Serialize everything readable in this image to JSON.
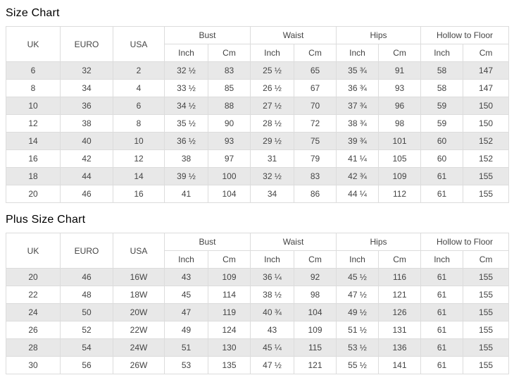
{
  "colors": {
    "background": "#ffffff",
    "border": "#dcdcdc",
    "row_stripe": "#e8e8e8",
    "cell_text": "#444444",
    "title_text": "#000000"
  },
  "tables": [
    {
      "title": "Size Chart",
      "size_columns": [
        "UK",
        "EURO",
        "USA"
      ],
      "measure_groups": [
        {
          "label": "Bust",
          "sub": [
            "Inch",
            "Cm"
          ]
        },
        {
          "label": "Waist",
          "sub": [
            "Inch",
            "Cm"
          ]
        },
        {
          "label": "Hips",
          "sub": [
            "Inch",
            "Cm"
          ]
        },
        {
          "label": "Hollow to Floor",
          "sub": [
            "Inch",
            "Cm"
          ]
        }
      ],
      "rows": [
        [
          "6",
          "32",
          "2",
          "32 ½",
          "83",
          "25 ½",
          "65",
          "35 ¾",
          "91",
          "58",
          "147"
        ],
        [
          "8",
          "34",
          "4",
          "33 ½",
          "85",
          "26 ½",
          "67",
          "36 ¾",
          "93",
          "58",
          "147"
        ],
        [
          "10",
          "36",
          "6",
          "34 ½",
          "88",
          "27 ½",
          "70",
          "37 ¾",
          "96",
          "59",
          "150"
        ],
        [
          "12",
          "38",
          "8",
          "35 ½",
          "90",
          "28 ½",
          "72",
          "38 ¾",
          "98",
          "59",
          "150"
        ],
        [
          "14",
          "40",
          "10",
          "36 ½",
          "93",
          "29 ½",
          "75",
          "39 ¾",
          "101",
          "60",
          "152"
        ],
        [
          "16",
          "42",
          "12",
          "38",
          "97",
          "31",
          "79",
          "41 ¼",
          "105",
          "60",
          "152"
        ],
        [
          "18",
          "44",
          "14",
          "39 ½",
          "100",
          "32 ½",
          "83",
          "42 ¾",
          "109",
          "61",
          "155"
        ],
        [
          "20",
          "46",
          "16",
          "41",
          "104",
          "34",
          "86",
          "44 ¼",
          "112",
          "61",
          "155"
        ]
      ]
    },
    {
      "title": "Plus Size Chart",
      "size_columns": [
        "UK",
        "EURO",
        "USA"
      ],
      "measure_groups": [
        {
          "label": "Bust",
          "sub": [
            "Inch",
            "Cm"
          ]
        },
        {
          "label": "Waist",
          "sub": [
            "Inch",
            "Cm"
          ]
        },
        {
          "label": "Hips",
          "sub": [
            "Inch",
            "Cm"
          ]
        },
        {
          "label": "Hollow to Floor",
          "sub": [
            "Inch",
            "Cm"
          ]
        }
      ],
      "rows": [
        [
          "20",
          "46",
          "16W",
          "43",
          "109",
          "36 ¼",
          "92",
          "45 ½",
          "116",
          "61",
          "155"
        ],
        [
          "22",
          "48",
          "18W",
          "45",
          "114",
          "38 ½",
          "98",
          "47 ½",
          "121",
          "61",
          "155"
        ],
        [
          "24",
          "50",
          "20W",
          "47",
          "119",
          "40 ¾",
          "104",
          "49 ½",
          "126",
          "61",
          "155"
        ],
        [
          "26",
          "52",
          "22W",
          "49",
          "124",
          "43",
          "109",
          "51 ½",
          "131",
          "61",
          "155"
        ],
        [
          "28",
          "54",
          "24W",
          "51",
          "130",
          "45 ¼",
          "115",
          "53 ½",
          "136",
          "61",
          "155"
        ],
        [
          "30",
          "56",
          "26W",
          "53",
          "135",
          "47 ½",
          "121",
          "55 ½",
          "141",
          "61",
          "155"
        ]
      ]
    }
  ]
}
